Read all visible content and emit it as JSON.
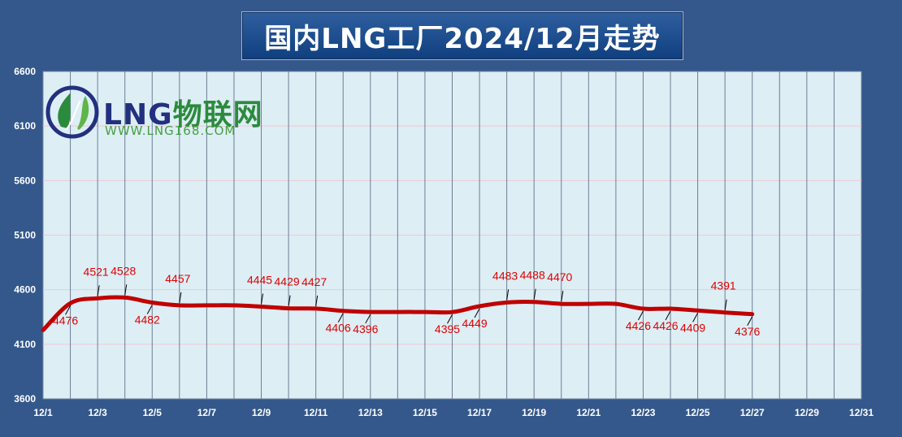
{
  "chart_data": {
    "type": "line",
    "title": "国内LNG工厂2024/12月走势",
    "xlabel": "",
    "ylabel": "",
    "x_ticks": [
      "12/1",
      "12/3",
      "12/5",
      "12/7",
      "12/9",
      "12/11",
      "12/13",
      "12/15",
      "12/17",
      "12/19",
      "12/21",
      "12/23",
      "12/25",
      "12/27",
      "12/29",
      "12/31"
    ],
    "yticks": [
      3600,
      4100,
      4600,
      5100,
      5600,
      6100,
      6600
    ],
    "ylim": [
      3600,
      6600
    ],
    "xlim": [
      1,
      31
    ],
    "grid": true,
    "legend": "none",
    "line_color": "#c00000",
    "label_color": "#e00000",
    "series": [
      {
        "x": [
          1,
          2,
          3,
          4,
          5,
          6,
          7,
          8,
          9,
          10,
          11,
          12,
          13,
          14,
          15,
          16,
          17,
          18,
          19,
          20,
          21,
          22,
          23,
          24,
          25,
          26,
          27
        ],
        "values": [
          4230,
          4476,
          4521,
          4528,
          4482,
          4457,
          4457,
          4457,
          4445,
          4429,
          4427,
          4406,
          4396,
          4396,
          4396,
          4395,
          4449,
          4483,
          4488,
          4470,
          4470,
          4470,
          4426,
          4426,
          4409,
          4391,
          4376
        ]
      }
    ],
    "annotations": [
      {
        "x": 2,
        "value": 4476,
        "text": "4476",
        "pos": "below"
      },
      {
        "x": 3,
        "value": 4521,
        "text": "4521",
        "pos": "above"
      },
      {
        "x": 4,
        "value": 4528,
        "text": "4528",
        "pos": "above"
      },
      {
        "x": 5,
        "value": 4482,
        "text": "4482",
        "pos": "below"
      },
      {
        "x": 6,
        "value": 4457,
        "text": "4457",
        "pos": "above"
      },
      {
        "x": 9,
        "value": 4445,
        "text": "4445",
        "pos": "above"
      },
      {
        "x": 10,
        "value": 4429,
        "text": "4429",
        "pos": "above"
      },
      {
        "x": 11,
        "value": 4427,
        "text": "4427",
        "pos": "above"
      },
      {
        "x": 12,
        "value": 4406,
        "text": "4406",
        "pos": "below"
      },
      {
        "x": 13,
        "value": 4396,
        "text": "4396",
        "pos": "below"
      },
      {
        "x": 16,
        "value": 4395,
        "text": "4395",
        "pos": "below"
      },
      {
        "x": 17,
        "value": 4449,
        "text": "4449",
        "pos": "below"
      },
      {
        "x": 18,
        "value": 4483,
        "text": "4483",
        "pos": "above"
      },
      {
        "x": 19,
        "value": 4488,
        "text": "4488",
        "pos": "above"
      },
      {
        "x": 20,
        "value": 4470,
        "text": "4470",
        "pos": "above"
      },
      {
        "x": 23,
        "value": 4426,
        "text": "4426",
        "pos": "below"
      },
      {
        "x": 24,
        "value": 4426,
        "text": "4426",
        "pos": "below"
      },
      {
        "x": 25,
        "value": 4409,
        "text": "4409",
        "pos": "below"
      },
      {
        "x": 26,
        "value": 4391,
        "text": "4391",
        "pos": "above"
      },
      {
        "x": 27,
        "value": 4376,
        "text": "4376",
        "pos": "below"
      }
    ]
  },
  "logo": {
    "brand_lng": "LNG",
    "brand_cn": "物联网",
    "url": "WWW.LNG168.COM"
  }
}
